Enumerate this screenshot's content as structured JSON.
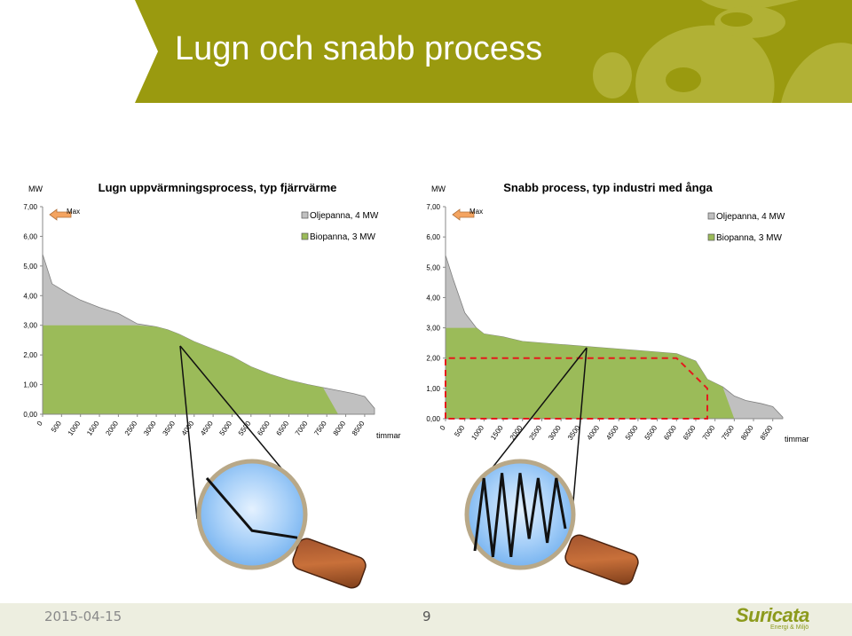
{
  "slide": {
    "title": "Lugn och snabb process",
    "date": "2015-04-15",
    "page_number": "9",
    "logo_name": "Suricata",
    "logo_tagline": "Energi & Miljö",
    "colors": {
      "header": "#9a9a0f",
      "bio": "#9bbb59",
      "oil": "#c0c0c0",
      "max_arrow": "#f4a460",
      "band": "#e41a1c"
    }
  },
  "chart_data": [
    {
      "type": "area",
      "title": "Lugn uppvärmningsprocess, typ fjärrvärme",
      "ylabel": "MW",
      "xlabel": "timmar",
      "ylim": [
        0,
        7
      ],
      "xlim": [
        0,
        8760
      ],
      "y_ticks": [
        "0,00",
        "1,00",
        "2,00",
        "3,00",
        "4,00",
        "5,00",
        "6,00",
        "7,00"
      ],
      "x_ticks": [
        "0",
        "500",
        "1000",
        "1500",
        "2000",
        "2500",
        "3000",
        "3500",
        "4000",
        "4500",
        "5000",
        "5500",
        "6000",
        "6500",
        "7000",
        "7500",
        "8000",
        "8500"
      ],
      "annotation": "Max",
      "legend": [
        {
          "name": "Oljepanna, 4 MW",
          "color": "#c0c0c0"
        },
        {
          "name": "Biopanna, 3 MW",
          "color": "#9bbb59"
        }
      ],
      "legend_position": "top-right",
      "series": [
        {
          "name": "Oljepanna, 4 MW",
          "x": [
            0,
            250,
            700,
            1000,
            1500,
            2000,
            2500,
            3000,
            3300,
            3600,
            4000,
            4500,
            5000,
            5500,
            6000,
            6500,
            7000,
            7400,
            7800,
            8200,
            8500,
            8760
          ],
          "y": [
            5.4,
            4.4,
            4.05,
            3.85,
            3.6,
            3.4,
            3.05,
            2.95,
            2.85,
            2.7,
            2.45,
            2.2,
            1.95,
            1.6,
            1.35,
            1.15,
            1.0,
            0.9,
            0.8,
            0.7,
            0.6,
            0.2
          ]
        },
        {
          "name": "Biopanna, 3 MW",
          "x": [
            0,
            2500,
            3000,
            3300,
            3600,
            4000,
            4500,
            5000,
            5500,
            6000,
            6500,
            7000,
            7400,
            7800
          ],
          "y": [
            3.0,
            3.0,
            2.95,
            2.85,
            2.7,
            2.45,
            2.2,
            1.95,
            1.6,
            1.35,
            1.15,
            1.0,
            0.9,
            0.0
          ]
        }
      ],
      "magnifier_zoom_y": [
        0.86,
        0.34,
        0.27
      ]
    },
    {
      "type": "area",
      "title": "Snabb process, typ industri med ånga",
      "ylabel": "MW",
      "xlabel": "timmar",
      "ylim": [
        0,
        7
      ],
      "xlim": [
        0,
        8760
      ],
      "y_ticks": [
        "0,00",
        "1,00",
        "2,00",
        "3,00",
        "4,00",
        "5,00",
        "6,00",
        "7,00"
      ],
      "x_ticks": [
        "0",
        "500",
        "1000",
        "1500",
        "2000",
        "2500",
        "3000",
        "3500",
        "4000",
        "4500",
        "5000",
        "5500",
        "6000",
        "6500",
        "7000",
        "7500",
        "8000",
        "8500"
      ],
      "annotation": "Max",
      "legend": [
        {
          "name": "Oljepanna, 4 MW",
          "color": "#c0c0c0"
        },
        {
          "name": "Biopanna, 3 MW",
          "color": "#9bbb59"
        }
      ],
      "legend_position": "top-right",
      "series": [
        {
          "name": "Oljepanna, 4 MW",
          "x": [
            0,
            200,
            500,
            800,
            1000,
            1500,
            2000,
            3000,
            4000,
            5000,
            6000,
            6500,
            6800,
            7200,
            7500,
            7800,
            8200,
            8500,
            8760
          ],
          "y": [
            5.4,
            4.6,
            3.5,
            3.0,
            2.8,
            2.7,
            2.55,
            2.45,
            2.35,
            2.25,
            2.15,
            1.9,
            1.3,
            1.05,
            0.75,
            0.6,
            0.5,
            0.4,
            0.05
          ]
        },
        {
          "name": "Biopanna, 3 MW",
          "x": [
            0,
            800,
            1000,
            1500,
            2000,
            3000,
            4000,
            5000,
            6000,
            6500,
            6800,
            7200,
            7500
          ],
          "y": [
            3.0,
            3.0,
            2.8,
            2.7,
            2.55,
            2.45,
            2.35,
            2.25,
            2.15,
            1.9,
            1.3,
            1.05,
            0.0
          ]
        }
      ],
      "dashed_band": {
        "x": [
          0,
          0,
          6000,
          6800,
          6800,
          0
        ],
        "y": [
          0,
          2.0,
          2.0,
          1.0,
          0,
          0
        ]
      },
      "magnifier_zoom_y": [
        0.14,
        0.86,
        0.08,
        0.91,
        0.08,
        0.91,
        0.26,
        0.86,
        0.22,
        0.86,
        0.36
      ]
    }
  ]
}
